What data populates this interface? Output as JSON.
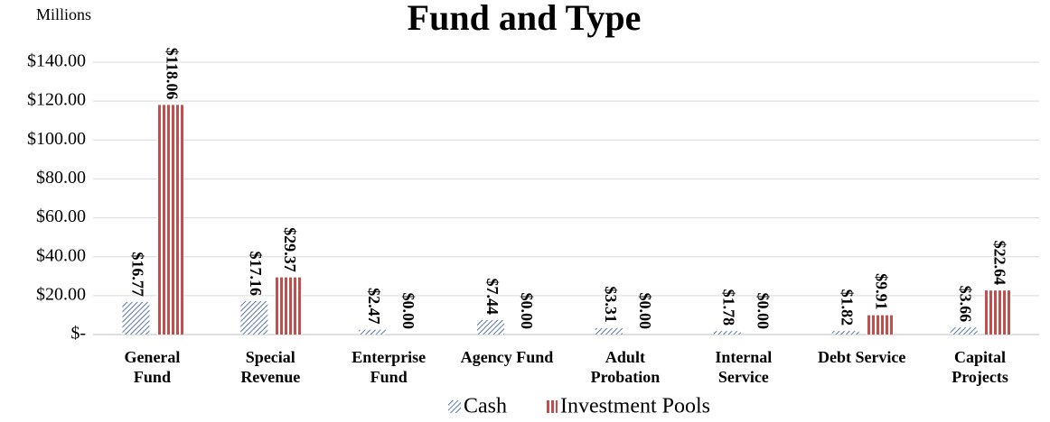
{
  "chart_data": {
    "type": "bar",
    "title": "Fund and Type",
    "y_unit_label": "Millions",
    "categories": [
      "General\nFund",
      "Special\nRevenue",
      "Enterprise\nFund",
      "Agency Fund",
      "Adult\nProbation",
      "Internal\nService",
      "Debt Service",
      "Capital\nProjects"
    ],
    "series": [
      {
        "name": "Cash",
        "color": "#2e5597",
        "pattern": "diagonal-hatch",
        "values": [
          16.77,
          17.16,
          2.47,
          7.44,
          3.31,
          1.78,
          1.82,
          3.66
        ],
        "value_labels": [
          "$16.77",
          "$17.16",
          "$2.47",
          "$7.44",
          "$3.31",
          "$1.78",
          "$1.82",
          "$3.66"
        ]
      },
      {
        "name": "Investment Pools",
        "color": "#c0504d",
        "pattern": "vertical-stripes",
        "values": [
          118.06,
          29.37,
          0,
          0,
          0,
          0,
          9.91,
          22.64
        ],
        "value_labels": [
          "$118.06",
          "$29.37",
          "$0.00",
          "$0.00",
          "$0.00",
          "$0.00",
          "$9.91",
          "$22.64"
        ]
      }
    ],
    "ylim": [
      0,
      140
    ],
    "yticks": [
      {
        "value": 0,
        "label": "$-"
      },
      {
        "value": 20,
        "label": "$20.00"
      },
      {
        "value": 40,
        "label": "$40.00"
      },
      {
        "value": 60,
        "label": "$60.00"
      },
      {
        "value": 80,
        "label": "$80.00"
      },
      {
        "value": 100,
        "label": "$100.00"
      },
      {
        "value": 120,
        "label": "$120.00"
      },
      {
        "value": 140,
        "label": "$140.00"
      }
    ],
    "grid": true,
    "legend": "bottom"
  }
}
